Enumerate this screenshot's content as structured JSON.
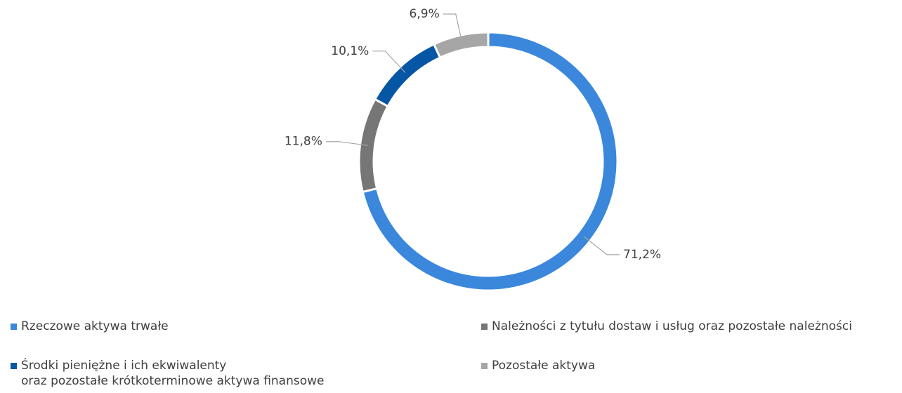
{
  "chart_data": {
    "type": "donut",
    "categories": [
      "Rzeczowe aktywa trwałe",
      "Należności z tytułu dostaw i usług oraz pozostałe należności",
      "Środki pieniężne i ich ekwiwalenty\noraz pozostałe krótkoterminowe aktywa finansowe",
      "Pozostałe aktywa"
    ],
    "values": [
      71.2,
      11.8,
      10.1,
      6.9
    ],
    "value_labels": [
      "71,2%",
      "11,8%",
      "10,1%",
      "6,9%"
    ],
    "colors": [
      "#3a87dc",
      "#767676",
      "#0656a6",
      "#a6a6a6"
    ],
    "legend": "bottom"
  }
}
